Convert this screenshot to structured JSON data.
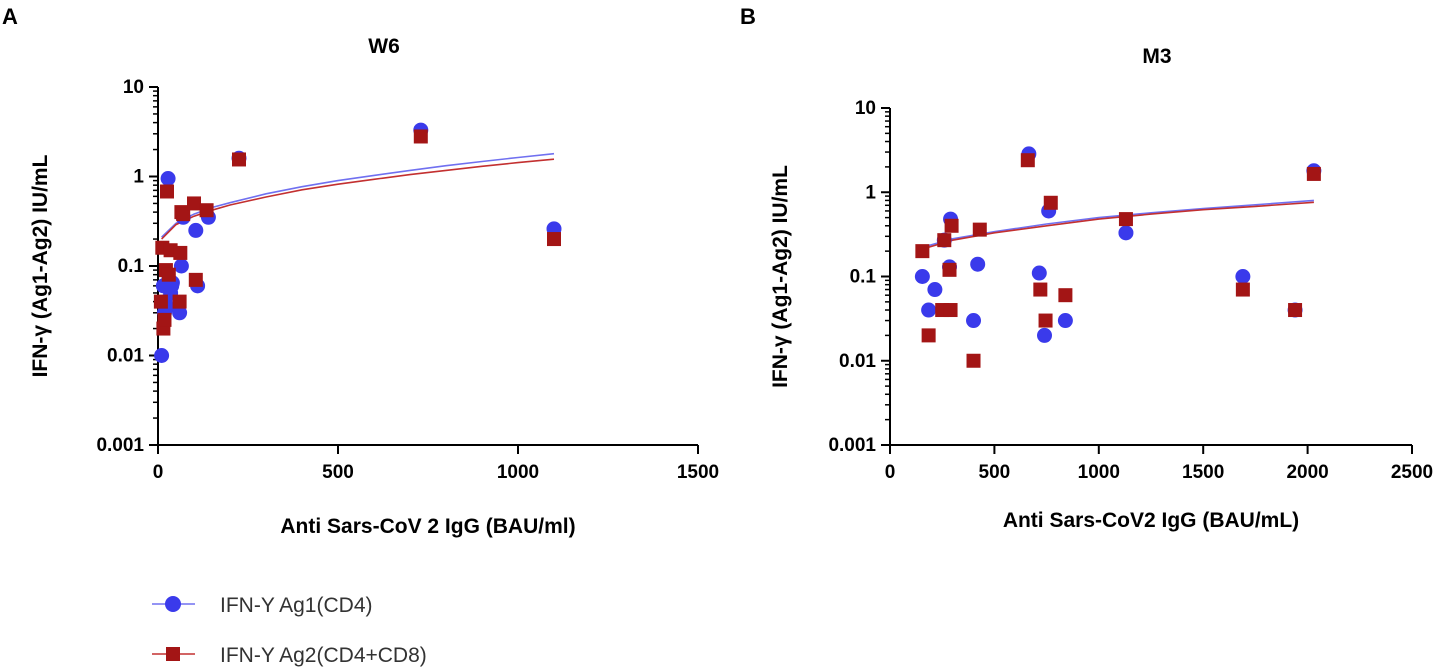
{
  "series_styles": {
    "ag1": {
      "name": "IFN-Y Ag1(CD4)",
      "color": "#3a3aeb",
      "fit_color": "#7070f0",
      "marker": "circle"
    },
    "ag2": {
      "name": "IFN-Y Ag2(CD4+CD8)",
      "color": "#a31515",
      "fit_color": "#c33030",
      "marker": "square"
    }
  },
  "legend": {
    "items": [
      "IFN-Y Ag1(CD4)",
      "IFN-Y Ag2(CD4+CD8)"
    ],
    "placement": "bottom-left"
  },
  "chart_data": [
    {
      "panel": "A",
      "type": "scatter",
      "title": "W6",
      "xlabel": "Anti  Sars-CoV 2 IgG (BAU/ml)",
      "ylabel": "IFN-γ (Ag1-Ag2) IU/mL",
      "xlim": [
        0,
        1500
      ],
      "ylim": [
        0.001,
        10
      ],
      "yscale": "log",
      "xticks": [
        0,
        500,
        1000,
        1500
      ],
      "xtick_labels": [
        "0",
        "500",
        "1000",
        "1500"
      ],
      "yticks": [
        0.001,
        0.01,
        0.1,
        1,
        10
      ],
      "ytick_labels": [
        "0.001",
        "0.01",
        "0.1",
        "1",
        "10"
      ],
      "series": [
        {
          "name": "IFN-Y Ag1(CD4)",
          "key": "ag1",
          "x": [
            10,
            15,
            18,
            20,
            25,
            28,
            30,
            35,
            38,
            40,
            60,
            65,
            70,
            105,
            110,
            140,
            225,
            730,
            1100
          ],
          "y": [
            0.01,
            0.06,
            0.03,
            0.04,
            0.035,
            0.95,
            0.07,
            0.05,
            0.06,
            0.065,
            0.03,
            0.1,
            0.35,
            0.25,
            0.06,
            0.35,
            1.6,
            3.3,
            0.26
          ],
          "fit": {
            "x": [
              10,
              50,
              100,
              150,
              200,
              300,
              400,
              500,
              600,
              700,
              800,
              900,
              1000,
              1100
            ],
            "y": [
              0.21,
              0.3,
              0.38,
              0.45,
              0.51,
              0.64,
              0.77,
              0.9,
              1.03,
              1.17,
              1.32,
              1.47,
              1.63,
              1.8
            ]
          }
        },
        {
          "name": "IFN-Y Ag2(CD4+CD8)",
          "key": "ag2",
          "x": [
            8,
            12,
            15,
            18,
            22,
            25,
            30,
            35,
            60,
            62,
            65,
            70,
            100,
            105,
            135,
            225,
            730,
            1100
          ],
          "y": [
            0.04,
            0.16,
            0.02,
            0.025,
            0.09,
            0.68,
            0.08,
            0.15,
            0.04,
            0.14,
            0.4,
            0.38,
            0.5,
            0.07,
            0.42,
            1.55,
            2.8,
            0.2
          ],
          "fit": {
            "x": [
              10,
              50,
              100,
              150,
              200,
              300,
              400,
              500,
              600,
              700,
              800,
              900,
              1000,
              1100
            ],
            "y": [
              0.2,
              0.29,
              0.36,
              0.42,
              0.48,
              0.59,
              0.71,
              0.82,
              0.93,
              1.05,
              1.17,
              1.3,
              1.43,
              1.56
            ]
          }
        }
      ]
    },
    {
      "panel": "B",
      "type": "scatter",
      "title": "M3",
      "xlabel": "Anti Sars-CoV2 IgG (BAU/mL)",
      "ylabel": "IFN-γ (Ag1-Ag2) IU/mL",
      "xlim": [
        0,
        2500
      ],
      "ylim": [
        0.001,
        10
      ],
      "yscale": "log",
      "xticks": [
        0,
        500,
        1000,
        1500,
        2000,
        2500
      ],
      "xtick_labels": [
        "0",
        "500",
        "1000",
        "1500",
        "2000",
        "2500"
      ],
      "yticks": [
        0.001,
        0.01,
        0.1,
        1,
        10
      ],
      "ytick_labels": [
        "0.001",
        "0.01",
        "0.1",
        "1",
        "10"
      ],
      "series": [
        {
          "name": "IFN-Y Ag1(CD4)",
          "key": "ag1",
          "x": [
            155,
            185,
            215,
            260,
            285,
            290,
            420,
            400,
            665,
            715,
            740,
            760,
            840,
            1130,
            1690,
            1940,
            2030
          ],
          "y": [
            0.1,
            0.04,
            0.07,
            0.27,
            0.13,
            0.48,
            0.14,
            0.03,
            2.85,
            0.11,
            0.02,
            0.6,
            0.03,
            0.33,
            0.1,
            0.04,
            1.8
          ],
          "fit": {
            "x": [
              150,
              300,
              500,
              750,
              1000,
              1250,
              1500,
              1750,
              2030
            ],
            "y": [
              0.22,
              0.28,
              0.34,
              0.42,
              0.5,
              0.57,
              0.64,
              0.71,
              0.8
            ]
          }
        },
        {
          "name": "IFN-Y Ag2(CD4+CD8)",
          "key": "ag2",
          "x": [
            155,
            185,
            250,
            260,
            285,
            290,
            295,
            400,
            430,
            660,
            720,
            745,
            770,
            840,
            1130,
            1690,
            1940,
            2030
          ],
          "y": [
            0.2,
            0.02,
            0.04,
            0.27,
            0.12,
            0.04,
            0.4,
            0.01,
            0.36,
            2.4,
            0.07,
            0.03,
            0.75,
            0.06,
            0.48,
            0.07,
            0.04,
            1.65
          ],
          "fit": {
            "x": [
              150,
              300,
              500,
              750,
              1000,
              1250,
              1500,
              1750,
              2030
            ],
            "y": [
              0.21,
              0.27,
              0.33,
              0.4,
              0.48,
              0.55,
              0.62,
              0.68,
              0.76
            ]
          }
        }
      ]
    }
  ]
}
